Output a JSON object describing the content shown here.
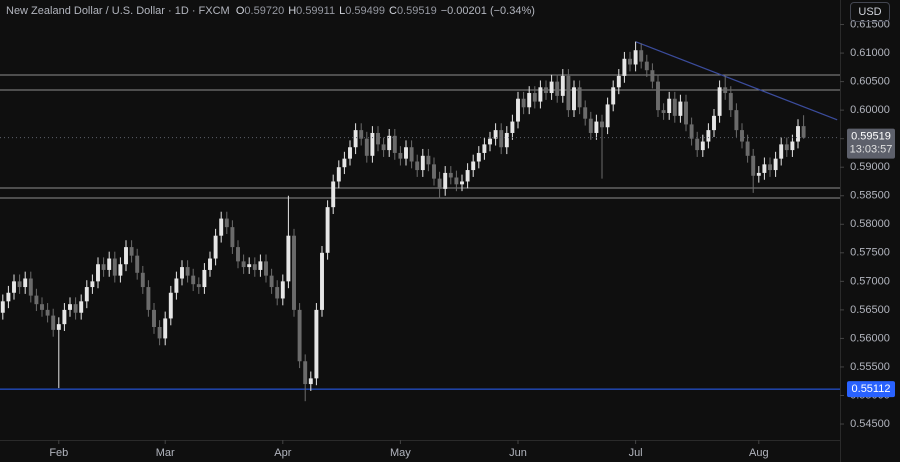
{
  "header": {
    "title": "New Zealand Dollar / U.S. Dollar · 1D · FXCM",
    "ohlc": [
      {
        "label": "O",
        "value": "0.59720"
      },
      {
        "label": "H",
        "value": "0.59911"
      },
      {
        "label": "L",
        "value": "0.59499"
      },
      {
        "label": "C",
        "value": "0.59519"
      }
    ],
    "change": "−0.00201 (−0.34%)",
    "currency": "USD"
  },
  "chart_data": {
    "type": "candlestick",
    "up_color": "#e6e6e6",
    "down_color": "#6b6b6b",
    "xlim": [
      -0.5,
      149.5
    ],
    "xticks": [
      {
        "value": 10,
        "label": "Feb"
      },
      {
        "value": 29,
        "label": "Mar"
      },
      {
        "value": 50,
        "label": "Apr"
      },
      {
        "value": 71,
        "label": "May"
      },
      {
        "value": 92,
        "label": "Jun"
      },
      {
        "value": 113,
        "label": "Jul"
      },
      {
        "value": 135,
        "label": "Aug"
      }
    ],
    "ylim": [
      0.5422,
      0.6193
    ],
    "yticks": [
      {
        "value": 0.545,
        "label": "0.54500"
      },
      {
        "value": 0.55,
        "label": "0.55000"
      },
      {
        "value": 0.555,
        "label": "0.55500"
      },
      {
        "value": 0.56,
        "label": "0.56000"
      },
      {
        "value": 0.565,
        "label": "0.56500"
      },
      {
        "value": 0.57,
        "label": "0.57000"
      },
      {
        "value": 0.575,
        "label": "0.57500"
      },
      {
        "value": 0.58,
        "label": "0.58000"
      },
      {
        "value": 0.585,
        "label": "0.58500"
      },
      {
        "value": 0.59,
        "label": "0.59000"
      },
      {
        "value": 0.595,
        "label": "0.59500"
      },
      {
        "value": 0.6,
        "label": "0.60000"
      },
      {
        "value": 0.605,
        "label": "0.60500"
      },
      {
        "value": 0.61,
        "label": "0.61000"
      },
      {
        "value": 0.615,
        "label": "0.61500"
      }
    ],
    "grid": false,
    "open": [
      0.5645,
      0.5665,
      0.568,
      0.57,
      0.569,
      0.5705,
      0.5675,
      0.566,
      0.565,
      0.564,
      0.5615,
      0.5625,
      0.565,
      0.566,
      0.5645,
      0.5665,
      0.569,
      0.57,
      0.573,
      0.572,
      0.574,
      0.571,
      0.573,
      0.576,
      0.5745,
      0.5715,
      0.569,
      0.565,
      0.562,
      0.56,
      0.5635,
      0.568,
      0.5705,
      0.5725,
      0.571,
      0.5695,
      0.569,
      0.572,
      0.574,
      0.578,
      0.581,
      0.5795,
      0.576,
      0.5735,
      0.5725,
      0.573,
      0.572,
      0.5735,
      0.571,
      0.569,
      0.567,
      0.57,
      0.578,
      0.565,
      0.556,
      0.552,
      0.553,
      0.565,
      0.575,
      0.583,
      0.5875,
      0.59,
      0.5915,
      0.5935,
      0.5965,
      0.595,
      0.592,
      0.596,
      0.594,
      0.593,
      0.5955,
      0.5925,
      0.5915,
      0.5935,
      0.591,
      0.5895,
      0.592,
      0.5905,
      0.588,
      0.5862,
      0.589,
      0.5882,
      0.587,
      0.5875,
      0.5895,
      0.591,
      0.5925,
      0.594,
      0.595,
      0.5965,
      0.5935,
      0.596,
      0.598,
      0.602,
      0.6005,
      0.603,
      0.6015,
      0.604,
      0.603,
      0.605,
      0.6025,
      0.606,
      0.6,
      0.604,
      0.6005,
      0.5985,
      0.596,
      0.598,
      0.597,
      0.601,
      0.604,
      0.606,
      0.609,
      0.608,
      0.6105,
      0.6085,
      0.607,
      0.605,
      0.6,
      0.5995,
      0.602,
      0.599,
      0.6015,
      0.5975,
      0.595,
      0.593,
      0.5945,
      0.5965,
      0.599,
      0.604,
      0.603,
      0.6,
      0.5965,
      0.5945,
      0.592,
      0.5885,
      0.589,
      0.5905,
      0.5895,
      0.5915,
      0.594,
      0.593,
      0.5945,
      0.5972
    ],
    "high": [
      0.5677,
      0.5692,
      0.5712,
      0.5712,
      0.5717,
      0.5717,
      0.5687,
      0.5672,
      0.5662,
      0.5652,
      0.5637,
      0.5662,
      0.5672,
      0.5672,
      0.5677,
      0.5702,
      0.5712,
      0.5742,
      0.5742,
      0.5752,
      0.5752,
      0.5742,
      0.5772,
      0.5772,
      0.5757,
      0.5727,
      0.5702,
      0.5662,
      0.5632,
      0.5647,
      0.5692,
      0.5717,
      0.5737,
      0.5737,
      0.5722,
      0.5707,
      0.5732,
      0.5752,
      0.5792,
      0.5822,
      0.5822,
      0.5807,
      0.5772,
      0.5747,
      0.5742,
      0.5742,
      0.5747,
      0.5747,
      0.5722,
      0.5702,
      0.5712,
      0.585,
      0.5792,
      0.5662,
      0.5572,
      0.5542,
      0.5662,
      0.5762,
      0.5842,
      0.5887,
      0.5912,
      0.5927,
      0.5947,
      0.5977,
      0.5977,
      0.5962,
      0.5972,
      0.5972,
      0.5952,
      0.5967,
      0.5967,
      0.5937,
      0.5947,
      0.5947,
      0.5922,
      0.5932,
      0.5932,
      0.5917,
      0.5892,
      0.5902,
      0.5902,
      0.5894,
      0.5887,
      0.5907,
      0.5922,
      0.5937,
      0.5952,
      0.5962,
      0.5977,
      0.5977,
      0.5972,
      0.5992,
      0.6032,
      0.6032,
      0.6042,
      0.6042,
      0.6052,
      0.6052,
      0.6062,
      0.6062,
      0.6072,
      0.6072,
      0.6052,
      0.6052,
      0.6017,
      0.5997,
      0.5992,
      0.5992,
      0.6022,
      0.6052,
      0.6072,
      0.6102,
      0.6102,
      0.612,
      0.6117,
      0.6097,
      0.6082,
      0.6062,
      0.6012,
      0.6032,
      0.6032,
      0.6027,
      0.6027,
      0.5987,
      0.5962,
      0.5957,
      0.5977,
      0.6002,
      0.6052,
      0.606,
      0.6042,
      0.6012,
      0.5977,
      0.5957,
      0.5932,
      0.5902,
      0.5917,
      0.5917,
      0.5927,
      0.5952,
      0.5952,
      0.5957,
      0.5984,
      0.59911
    ],
    "low": [
      0.5633,
      0.5653,
      0.5668,
      0.5678,
      0.5678,
      0.5663,
      0.5648,
      0.5638,
      0.5628,
      0.5603,
      0.5513,
      0.5613,
      0.5638,
      0.5633,
      0.5633,
      0.5653,
      0.5678,
      0.5688,
      0.5708,
      0.5708,
      0.5698,
      0.5698,
      0.5718,
      0.5733,
      0.5703,
      0.5678,
      0.5638,
      0.5608,
      0.5588,
      0.5588,
      0.5623,
      0.5668,
      0.5693,
      0.5698,
      0.5683,
      0.5678,
      0.5678,
      0.5708,
      0.5728,
      0.5768,
      0.5783,
      0.5748,
      0.5723,
      0.5713,
      0.5713,
      0.5708,
      0.5708,
      0.5698,
      0.5678,
      0.5658,
      0.5658,
      0.5688,
      0.5638,
      0.5548,
      0.549,
      0.5508,
      0.5518,
      0.5638,
      0.5738,
      0.5818,
      0.5863,
      0.5888,
      0.5903,
      0.5923,
      0.5938,
      0.5908,
      0.5908,
      0.5928,
      0.5918,
      0.5918,
      0.5913,
      0.5903,
      0.5903,
      0.5898,
      0.5883,
      0.5883,
      0.5893,
      0.5868,
      0.5845,
      0.585,
      0.587,
      0.5858,
      0.5858,
      0.5863,
      0.5883,
      0.5898,
      0.5913,
      0.5928,
      0.5938,
      0.5923,
      0.5923,
      0.5948,
      0.5968,
      0.5993,
      0.5993,
      0.6003,
      0.6003,
      0.6018,
      0.6018,
      0.6013,
      0.6013,
      0.5988,
      0.5988,
      0.5993,
      0.5973,
      0.5948,
      0.5948,
      0.588,
      0.5958,
      0.5998,
      0.6028,
      0.6048,
      0.6068,
      0.6068,
      0.6073,
      0.6058,
      0.6038,
      0.5988,
      0.5983,
      0.5983,
      0.5978,
      0.5978,
      0.5963,
      0.5938,
      0.5918,
      0.5918,
      0.5933,
      0.5953,
      0.5978,
      0.6018,
      0.5988,
      0.5953,
      0.5933,
      0.5908,
      0.5855,
      0.5873,
      0.5878,
      0.5883,
      0.5883,
      0.5903,
      0.5918,
      0.5918,
      0.5933,
      0.59499
    ],
    "close": [
      0.5665,
      0.568,
      0.57,
      0.569,
      0.5705,
      0.5675,
      0.566,
      0.565,
      0.564,
      0.5615,
      0.5625,
      0.565,
      0.566,
      0.5645,
      0.5665,
      0.569,
      0.57,
      0.573,
      0.572,
      0.574,
      0.571,
      0.573,
      0.576,
      0.5745,
      0.5715,
      0.569,
      0.565,
      0.562,
      0.56,
      0.5635,
      0.568,
      0.5705,
      0.5725,
      0.571,
      0.5695,
      0.569,
      0.572,
      0.574,
      0.578,
      0.581,
      0.5795,
      0.576,
      0.5735,
      0.5725,
      0.573,
      0.572,
      0.5735,
      0.571,
      0.569,
      0.567,
      0.57,
      0.578,
      0.565,
      0.556,
      0.552,
      0.553,
      0.565,
      0.575,
      0.583,
      0.5875,
      0.59,
      0.5915,
      0.5935,
      0.5965,
      0.595,
      0.592,
      0.596,
      0.594,
      0.593,
      0.5955,
      0.5925,
      0.5915,
      0.5935,
      0.591,
      0.5895,
      0.592,
      0.5905,
      0.588,
      0.5862,
      0.589,
      0.5882,
      0.587,
      0.5875,
      0.5895,
      0.591,
      0.5925,
      0.594,
      0.595,
      0.5965,
      0.5935,
      0.596,
      0.598,
      0.602,
      0.6005,
      0.603,
      0.6015,
      0.604,
      0.603,
      0.605,
      0.6025,
      0.606,
      0.6,
      0.604,
      0.6005,
      0.5985,
      0.596,
      0.598,
      0.597,
      0.601,
      0.604,
      0.606,
      0.609,
      0.608,
      0.6105,
      0.6085,
      0.607,
      0.605,
      0.6,
      0.5995,
      0.602,
      0.599,
      0.6015,
      0.5975,
      0.595,
      0.593,
      0.5945,
      0.5965,
      0.599,
      0.604,
      0.603,
      0.6,
      0.5965,
      0.5945,
      0.592,
      0.5885,
      0.589,
      0.5905,
      0.5895,
      0.5915,
      0.594,
      0.593,
      0.5945,
      0.5972,
      0.59519
    ],
    "levels": [
      {
        "value": 0.60615
      },
      {
        "value": 0.60352
      },
      {
        "value": 0.58635
      },
      {
        "value": 0.5846
      }
    ],
    "level_color": "#8c8c8c",
    "trendline": {
      "x": [
        113,
        149
      ],
      "y": [
        0.612,
        0.5983
      ],
      "color": "#3b4c9c"
    },
    "price_line": {
      "value": 0.55112,
      "color": "#2962ff"
    },
    "price_tag": {
      "color": "#5d606b",
      "countdown": "13:03:57"
    }
  }
}
